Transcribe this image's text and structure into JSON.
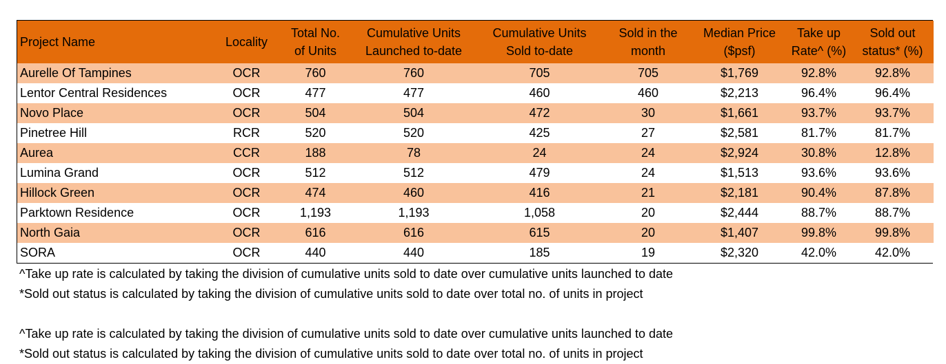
{
  "table": {
    "headers": [
      "Project Name",
      "Locality",
      "Total No. of Units",
      "Cumulative Units Launched to-date",
      "Cumulative Units Sold to-date",
      "Sold in the month",
      "Median Price ($psf)",
      "Take up Rate^ (%)",
      "Sold out status* (%)"
    ],
    "rows": [
      [
        "Aurelle Of Tampines",
        "OCR",
        "760",
        "760",
        "705",
        "705",
        "$1,769",
        "92.8%",
        "92.8%"
      ],
      [
        "Lentor Central Residences",
        "OCR",
        "477",
        "477",
        "460",
        "460",
        "$2,213",
        "96.4%",
        "96.4%"
      ],
      [
        "Novo Place",
        "OCR",
        "504",
        "504",
        "472",
        "30",
        "$1,661",
        "93.7%",
        "93.7%"
      ],
      [
        "Pinetree Hill",
        "RCR",
        "520",
        "520",
        "425",
        "27",
        "$2,581",
        "81.7%",
        "81.7%"
      ],
      [
        "Aurea",
        "CCR",
        "188",
        "78",
        "24",
        "24",
        "$2,924",
        "30.8%",
        "12.8%"
      ],
      [
        "Lumina Grand",
        "OCR",
        "512",
        "512",
        "479",
        "24",
        "$1,513",
        "93.6%",
        "93.6%"
      ],
      [
        "Hillock Green",
        "OCR",
        "474",
        "460",
        "416",
        "21",
        "$2,181",
        "90.4%",
        "87.8%"
      ],
      [
        "Parktown Residence",
        "OCR",
        "1,193",
        "1,193",
        "1,058",
        "20",
        "$2,444",
        "88.7%",
        "88.7%"
      ],
      [
        "North Gaia",
        "OCR",
        "616",
        "616",
        "615",
        "20",
        "$1,407",
        "99.8%",
        "99.8%"
      ],
      [
        "SORA",
        "OCR",
        "440",
        "440",
        "185",
        "19",
        "$2,320",
        "42.0%",
        "42.0%"
      ]
    ]
  },
  "notes": {
    "take_up_note": "^Take up rate is calculated by taking the division of cumulative units sold to date over cumulative units launched to date",
    "sold_out_note": "*Sold out status is calculated by taking the division of cumulative units sold to date over total no. of units in project",
    "take_up_note_repeat": "^Take up rate is calculated by taking the division of cumulative units sold to date over cumulative units launched to date",
    "sold_out_note_repeat": "*Sold out status is calculated by taking the division of cumulative units sold to date over total no. of units in project"
  },
  "colors": {
    "header_bg": "#e46c0a",
    "row_alt_bg": "#f9c29b",
    "row_bg": "#ffffff"
  }
}
